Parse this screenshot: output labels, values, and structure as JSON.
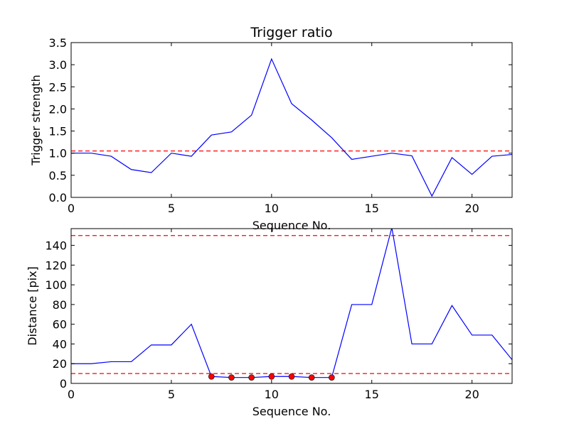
{
  "figure": {
    "background": "#ffffff"
  },
  "chart_data": [
    {
      "type": "line",
      "title": "Trigger ratio",
      "xlabel": "Sequence No.",
      "ylabel": "Trigger strength",
      "xlim": [
        0,
        22
      ],
      "ylim": [
        0,
        3.5
      ],
      "xticks": [
        0,
        5,
        10,
        15,
        20
      ],
      "xtick_labels": [
        "0",
        "5",
        "10",
        "15",
        "20"
      ],
      "yticks": [
        0,
        0.5,
        1,
        1.5,
        2,
        2.5,
        3,
        3.5
      ],
      "ytick_labels": [
        "0.0",
        "0.5",
        "1.0",
        "1.5",
        "2.0",
        "2.5",
        "3.0",
        "3.5"
      ],
      "grid": false,
      "series": [
        {
          "color": "#0000ff",
          "style": "solid",
          "x": [
            0,
            1,
            2,
            3,
            4,
            5,
            6,
            7,
            8,
            9,
            10,
            11,
            12,
            13,
            14,
            15,
            16,
            17,
            18,
            19,
            20,
            21,
            22
          ],
          "values": [
            1.0,
            1.0,
            0.93,
            0.63,
            0.56,
            1.0,
            0.93,
            1.41,
            1.48,
            1.86,
            3.13,
            2.12,
            1.75,
            1.35,
            0.86,
            0.93,
            1.0,
            0.94,
            0.03,
            0.9,
            0.52,
            0.93,
            0.97
          ]
        }
      ],
      "reference_lines": [
        {
          "y": 1.05,
          "color": "#ff0000",
          "style": "dashed"
        }
      ]
    },
    {
      "type": "line",
      "xlabel": "Sequence No.",
      "ylabel": "Distance [pix]",
      "xlim": [
        0,
        22
      ],
      "ylim": [
        0,
        157
      ],
      "xticks": [
        0,
        5,
        10,
        15,
        20
      ],
      "xtick_labels": [
        "0",
        "5",
        "10",
        "15",
        "20"
      ],
      "yticks": [
        0,
        20,
        40,
        60,
        80,
        100,
        120,
        140
      ],
      "ytick_labels": [
        "0",
        "20",
        "40",
        "60",
        "80",
        "100",
        "120",
        "140"
      ],
      "grid": false,
      "series": [
        {
          "color": "#0000ff",
          "style": "solid",
          "x": [
            0,
            1,
            2,
            3,
            4,
            5,
            6,
            7,
            8,
            9,
            10,
            11,
            12,
            13,
            14,
            15,
            16,
            17,
            18,
            19,
            20,
            21,
            22
          ],
          "values": [
            20,
            20,
            22,
            22,
            39,
            39,
            60,
            7,
            6,
            6,
            7,
            7,
            6,
            6,
            80,
            80,
            158,
            40,
            40,
            79,
            49,
            49,
            24
          ]
        }
      ],
      "markers": [
        {
          "color": "#ff0000",
          "x": [
            7,
            8,
            9,
            10,
            11,
            12,
            13
          ],
          "values": [
            7,
            6,
            6,
            7,
            7,
            6,
            6
          ]
        }
      ],
      "reference_lines": [
        {
          "y": 150,
          "color": "#ff0000",
          "style": "dashed"
        },
        {
          "y": 10,
          "color": "#ff0000",
          "style": "dashed"
        }
      ]
    }
  ]
}
